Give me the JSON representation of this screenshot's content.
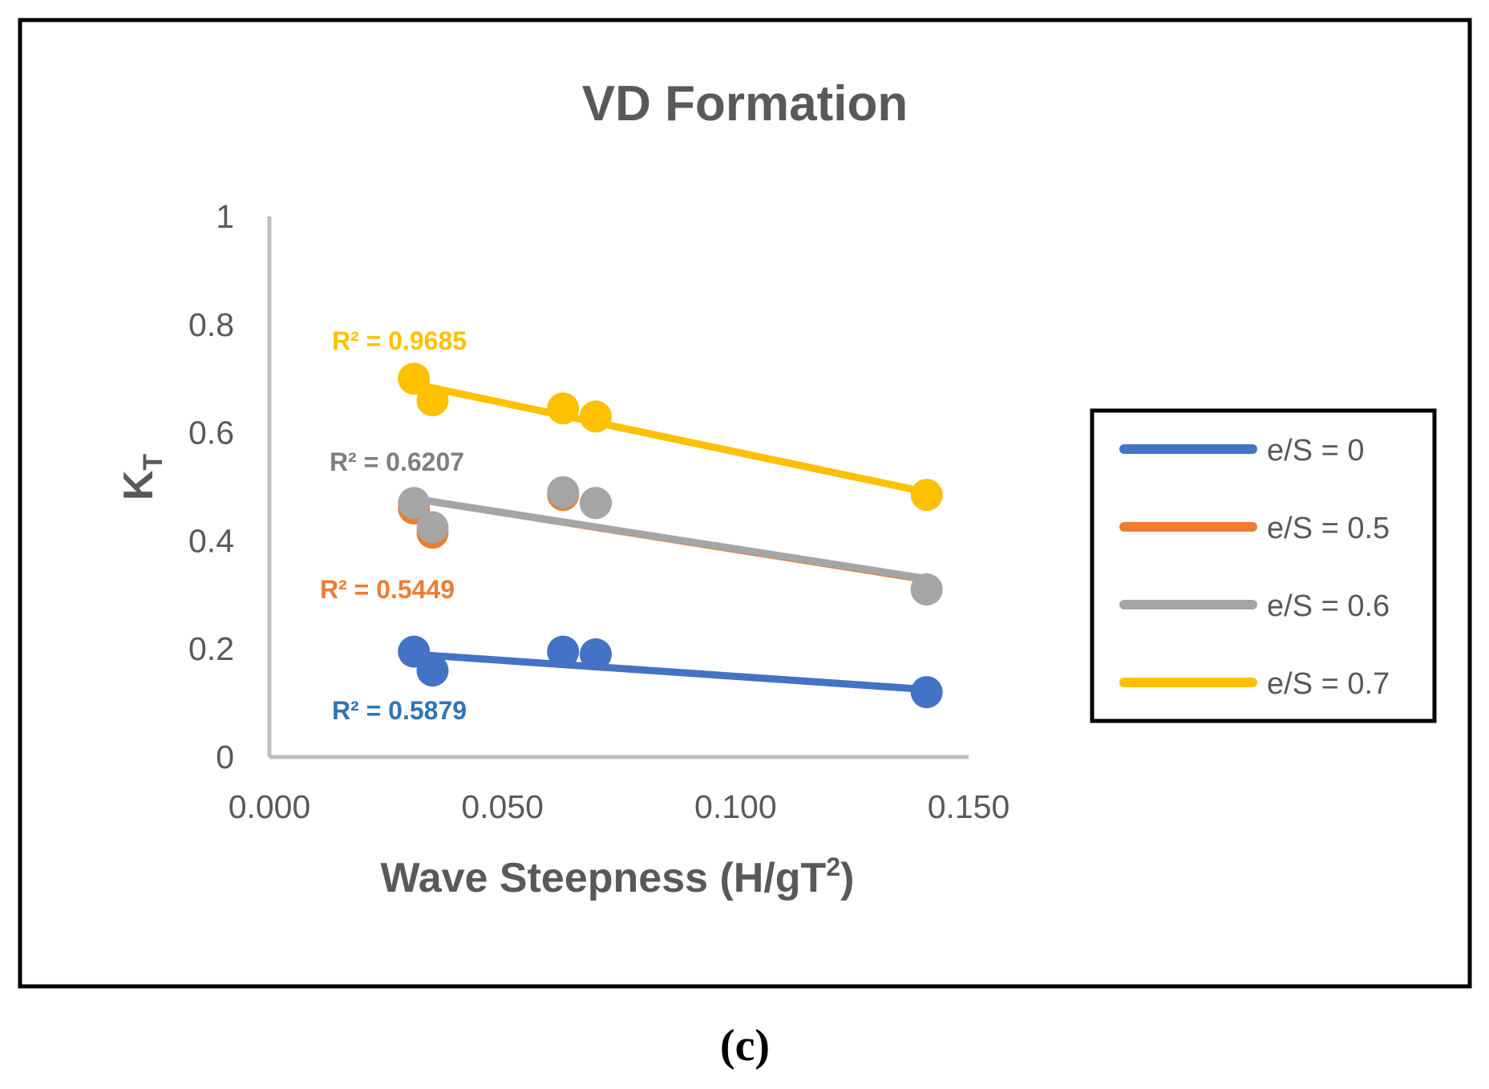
{
  "caption": "(c)",
  "chart_data": {
    "type": "scatter",
    "title": "VD Formation",
    "xlabel": "Wave Steepness (H/gT²)",
    "xlabel_main": "Wave Steepness (H/gT",
    "xlabel_sup": "2",
    "xlabel_close": ")",
    "ylabel_main": "K",
    "ylabel_sub": "T",
    "xlim": [
      0,
      0.15
    ],
    "ylim": [
      0,
      1
    ],
    "xticks": [
      0,
      0.05,
      0.1,
      0.15
    ],
    "xtick_labels": [
      "0.000",
      "0.050",
      "0.100",
      "0.150"
    ],
    "yticks": [
      0,
      0.2,
      0.4,
      0.6,
      0.8,
      1
    ],
    "ytick_labels": [
      "0",
      "0.2",
      "0.4",
      "0.6",
      "0.8",
      "1"
    ],
    "legend_position": "right",
    "series": [
      {
        "name": "e/S = 0",
        "color": "#4472C4",
        "x": [
          0.031,
          0.035,
          0.063,
          0.07,
          0.141
        ],
        "y": [
          0.195,
          0.16,
          0.195,
          0.19,
          0.12
        ],
        "trendline": {
          "x": [
            0.031,
            0.141
          ],
          "y": [
            0.19,
            0.125
          ]
        },
        "r2_label": "R² = 0.5879",
        "r2_color": "#2E75B6"
      },
      {
        "name": "e/S = 0.5",
        "color": "#ED7D31",
        "x": [
          0.031,
          0.035,
          0.063,
          0.07,
          0.141
        ],
        "y": [
          0.46,
          0.415,
          0.485,
          0.47,
          0.31
        ],
        "trendline": {
          "x": [
            0.031,
            0.141
          ],
          "y": [
            0.475,
            0.325
          ]
        },
        "r2_label": "R² = 0.5449",
        "r2_color": "#ED7D31"
      },
      {
        "name": "e/S = 0.6",
        "color": "#A5A5A5",
        "x": [
          0.031,
          0.035,
          0.063,
          0.07,
          0.141
        ],
        "y": [
          0.47,
          0.425,
          0.49,
          0.47,
          0.31
        ],
        "trendline": {
          "x": [
            0.031,
            0.141
          ],
          "y": [
            0.478,
            0.33
          ]
        },
        "r2_label": "R² = 0.6207",
        "r2_color": "#7F7F7F"
      },
      {
        "name": "e/S = 0.7",
        "color": "#FFC000",
        "x": [
          0.031,
          0.035,
          0.063,
          0.07,
          0.141
        ],
        "y": [
          0.7,
          0.66,
          0.645,
          0.63,
          0.485
        ],
        "trendline": {
          "x": [
            0.031,
            0.141
          ],
          "y": [
            0.69,
            0.49
          ]
        },
        "r2_label": "R² = 0.9685",
        "r2_color": "#FFC000"
      }
    ]
  }
}
